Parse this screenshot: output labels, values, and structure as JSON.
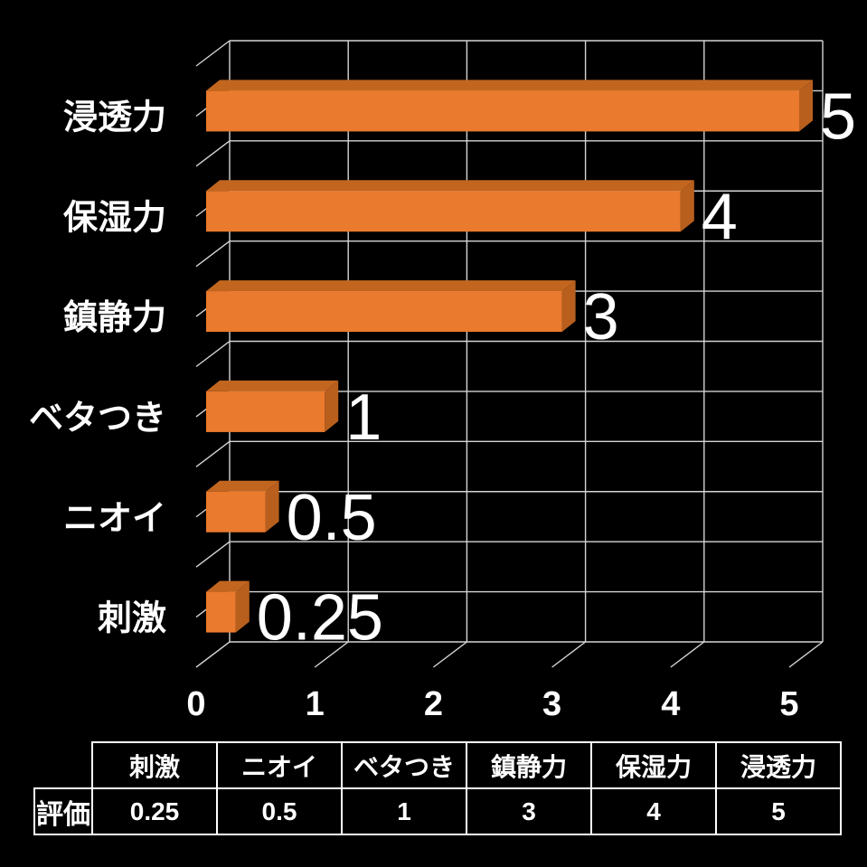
{
  "chart_data": {
    "type": "bar",
    "orientation": "horizontal",
    "style": "3d",
    "title": "",
    "xlabel": "",
    "ylabel": "",
    "categories": [
      "浸透力",
      "保湿力",
      "鎮静力",
      "ベタつき",
      "ニオイ",
      "刺激"
    ],
    "values": [
      5,
      4,
      3,
      1,
      0.5,
      0.25
    ],
    "value_labels": [
      "5",
      "4",
      "3",
      "1",
      "0.5",
      "0.25"
    ],
    "xlim": [
      0,
      5
    ],
    "x_ticks": [
      "0",
      "1",
      "2",
      "3",
      "4",
      "5"
    ],
    "grid": true,
    "legend": false,
    "colors": {
      "background": "#000000",
      "bar_front": "#EA7A2D",
      "bar_top": "#C2661F",
      "bar_side": "#B85F1E",
      "gridline": "#D4D4D4",
      "text": "#FFFFFF"
    }
  },
  "table": {
    "row_header": "評価",
    "columns": [
      "刺激",
      "ニオイ",
      "ベタつき",
      "鎮静力",
      "保湿力",
      "浸透力"
    ],
    "values": [
      "0.25",
      "0.5",
      "1",
      "3",
      "4",
      "5"
    ]
  }
}
